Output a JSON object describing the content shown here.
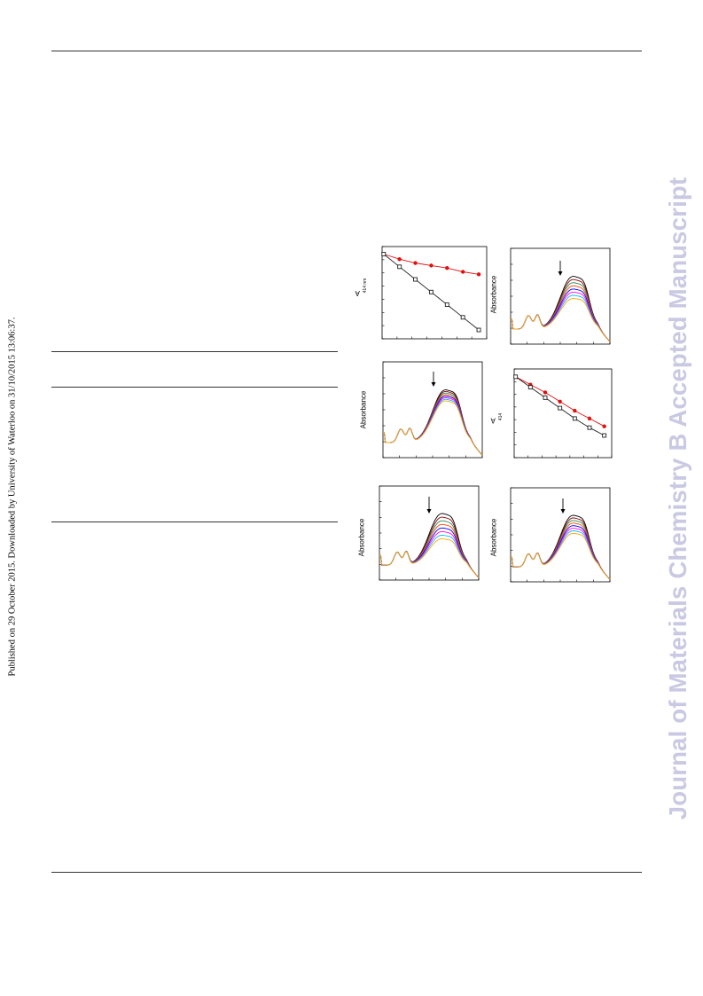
{
  "sidebar_left": {
    "text": "Published on 29 October 2015. Downloaded by University of Waterloo on 31/10/2015 13:06:37."
  },
  "watermark": {
    "text": "Journal of Materials Chemistry B Accepted Manuscript"
  },
  "panels": [
    {
      "id": "a",
      "ylabel": "A",
      "ylabel_sub": "414 nm",
      "chart_data": {
        "type": "line",
        "series": [
          {
            "color": "#e01010",
            "marker": "circle",
            "x": [
              0,
              1,
              2,
              3,
              4,
              5,
              6
            ],
            "values": [
              0.92,
              0.88,
              0.85,
              0.83,
              0.81,
              0.78,
              0.76
            ]
          },
          {
            "color": "#222222",
            "marker": "square",
            "x": [
              0,
              1,
              2,
              3,
              4,
              5,
              6
            ],
            "values": [
              0.92,
              0.82,
              0.72,
              0.62,
              0.52,
              0.42,
              0.32
            ]
          }
        ],
        "ylim": [
          0.25,
          0.98
        ],
        "xlim": [
          -0.1,
          6.5
        ]
      }
    },
    {
      "id": "b",
      "ylabel": "Absorbance",
      "chart_data": {
        "type": "line",
        "spectra_colors": [
          "#000000",
          "#8b0000",
          "#2e8b57",
          "#ff4500",
          "#0000ff",
          "#ff00ff",
          "#00bfff",
          "#ffa500"
        ],
        "peak_heights": [
          1.0,
          0.94,
          0.88,
          0.82,
          0.76,
          0.7,
          0.64,
          0.58
        ]
      }
    },
    {
      "id": "c",
      "ylabel": "Absorbance",
      "chart_data": {
        "type": "line",
        "spectra_colors": [
          "#000000",
          "#8b0000",
          "#2e8b57",
          "#ff4500",
          "#0000ff",
          "#ff00ff",
          "#00bfff",
          "#ffa500"
        ],
        "peak_heights": [
          1.0,
          0.97,
          0.94,
          0.91,
          0.88,
          0.85,
          0.82,
          0.79
        ]
      }
    },
    {
      "id": "d",
      "ylabel": "A",
      "ylabel_sub": "414",
      "chart_data": {
        "type": "line",
        "series": [
          {
            "color": "#e01010",
            "marker": "circle",
            "x": [
              0,
              1,
              2,
              3,
              4,
              5,
              6
            ],
            "values": [
              0.92,
              0.86,
              0.8,
              0.73,
              0.66,
              0.6,
              0.54
            ]
          },
          {
            "color": "#222222",
            "marker": "square",
            "x": [
              0,
              1,
              2,
              3,
              4,
              5,
              6
            ],
            "values": [
              0.92,
              0.84,
              0.76,
              0.68,
              0.6,
              0.53,
              0.47
            ]
          }
        ],
        "ylim": [
          0.3,
          0.98
        ],
        "xlim": [
          -0.1,
          6.5
        ]
      }
    },
    {
      "id": "e",
      "ylabel": "Absorbance",
      "chart_data": {
        "type": "line",
        "spectra_colors": [
          "#000000",
          "#8b0000",
          "#2e8b57",
          "#ff4500",
          "#0000ff",
          "#ff00ff",
          "#00bfff",
          "#ffa500"
        ],
        "peak_heights": [
          1.0,
          0.93,
          0.86,
          0.79,
          0.72,
          0.65,
          0.58,
          0.51
        ]
      }
    },
    {
      "id": "f",
      "ylabel": "Absorbance",
      "chart_data": {
        "type": "line",
        "spectra_colors": [
          "#000000",
          "#8b0000",
          "#2e8b57",
          "#ff4500",
          "#0000ff",
          "#ff00ff",
          "#00bfff",
          "#ffa500"
        ],
        "peak_heights": [
          1.0,
          0.95,
          0.9,
          0.85,
          0.8,
          0.75,
          0.7,
          0.65
        ]
      }
    }
  ]
}
